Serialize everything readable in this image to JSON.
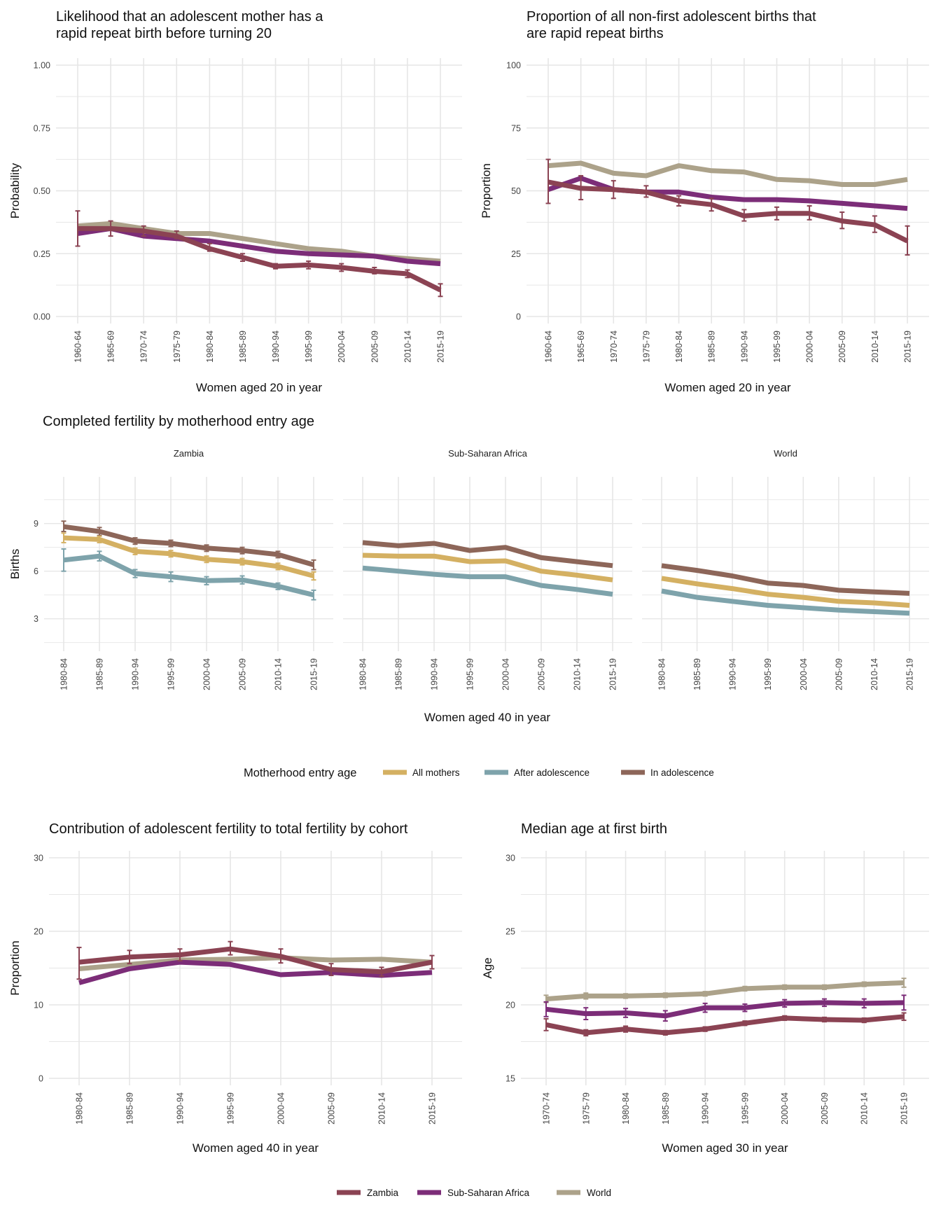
{
  "colors": {
    "Zambia": "#8b4353",
    "Sub-Saharan Africa": "#7c2d78",
    "World": "#aca28a",
    "All mothers": "#d4b062",
    "After adolescence": "#7ea3ab",
    "In adolescence": "#8d6659"
  },
  "legend_region": {
    "items": [
      "Zambia",
      "Sub-Saharan Africa",
      "World"
    ]
  },
  "legend_entry": {
    "title": "Motherhood entry age",
    "items": [
      "All mothers",
      "After adolescence",
      "In adolescence"
    ]
  },
  "chart_data": [
    {
      "id": "rapid-repeat-likelihood",
      "type": "line",
      "title": "Likelihood that an adolescent mother has a rapid repeat birth before turning 20",
      "xlabel": "Women aged 20 in year",
      "ylabel": "Probability",
      "ylim": [
        0,
        1
      ],
      "yticks": [
        0,
        0.25,
        0.5,
        0.75,
        1
      ],
      "ytick_labels": [
        "0.00",
        "0.25",
        "0.50",
        "0.75",
        "1.00"
      ],
      "categories": [
        "1960-64",
        "1965-69",
        "1970-74",
        "1975-79",
        "1980-84",
        "1985-89",
        "1990-94",
        "1995-99",
        "2000-04",
        "2005-09",
        "2010-14",
        "2015-19"
      ],
      "grid": true,
      "series": [
        {
          "name": "World",
          "values": [
            0.36,
            0.37,
            0.35,
            0.33,
            0.33,
            0.31,
            0.29,
            0.27,
            0.26,
            0.24,
            0.23,
            0.22
          ]
        },
        {
          "name": "Sub-Saharan Africa",
          "values": [
            0.33,
            0.35,
            0.32,
            0.31,
            0.3,
            0.28,
            0.26,
            0.25,
            0.245,
            0.24,
            0.22,
            0.21
          ]
        },
        {
          "name": "Zambia",
          "values": [
            0.35,
            0.35,
            0.34,
            0.32,
            0.27,
            0.235,
            0.2,
            0.205,
            0.195,
            0.18,
            0.17,
            0.105
          ],
          "errors": [
            [
              0.28,
              0.42
            ],
            [
              0.32,
              0.38
            ],
            [
              0.32,
              0.36
            ],
            [
              0.31,
              0.34
            ],
            [
              0.26,
              0.29
            ],
            [
              0.22,
              0.25
            ],
            [
              0.19,
              0.21
            ],
            [
              0.19,
              0.22
            ],
            [
              0.18,
              0.21
            ],
            [
              0.17,
              0.195
            ],
            [
              0.155,
              0.185
            ],
            [
              0.08,
              0.13
            ]
          ]
        }
      ]
    },
    {
      "id": "rapid-repeat-proportion",
      "type": "line",
      "title": "Proportion of all non-first adolescent births that are rapid repeat births",
      "xlabel": "Women aged 20 in year",
      "ylabel": "Proportion",
      "ylim": [
        0,
        100
      ],
      "yticks": [
        0,
        25,
        50,
        75,
        100
      ],
      "ytick_labels": [
        "0",
        "25",
        "50",
        "75",
        "100"
      ],
      "categories": [
        "1960-64",
        "1965-69",
        "1970-74",
        "1975-79",
        "1980-84",
        "1985-89",
        "1990-94",
        "1995-99",
        "2000-04",
        "2005-09",
        "2010-14",
        "2015-19"
      ],
      "grid": true,
      "series": [
        {
          "name": "World",
          "values": [
            60,
            61,
            57,
            56,
            60,
            58,
            57.5,
            54.5,
            54,
            52.5,
            52.5,
            54.5
          ]
        },
        {
          "name": "Sub-Saharan Africa",
          "values": [
            50.5,
            55,
            50.5,
            49.5,
            49.5,
            47.5,
            46.5,
            46.5,
            46,
            45,
            44,
            43
          ]
        },
        {
          "name": "Zambia",
          "values": [
            53.5,
            51,
            50.5,
            49.5,
            46,
            44.5,
            40,
            41,
            41,
            38,
            36.5,
            30
          ],
          "errors": [
            [
              45,
              62.5
            ],
            [
              46.5,
              56
            ],
            [
              47,
              54
            ],
            [
              47.5,
              52
            ],
            [
              44,
              48
            ],
            [
              42,
              47
            ],
            [
              38,
              42.5
            ],
            [
              38.5,
              43.5
            ],
            [
              38.5,
              44
            ],
            [
              35,
              41.5
            ],
            [
              33.5,
              40
            ],
            [
              24.5,
              36
            ]
          ]
        }
      ]
    },
    {
      "id": "completed-fertility",
      "type": "line",
      "title": "Completed fertility by motherhood entry age",
      "xlabel": "Women aged 40 in year",
      "ylabel": "Births",
      "ylim": [
        1.4,
        11.5
      ],
      "yticks": [
        3,
        6,
        9
      ],
      "ytick_labels": [
        "3",
        "6",
        "9"
      ],
      "categories": [
        "1980-84",
        "1985-89",
        "1990-94",
        "1995-99",
        "2000-04",
        "2005-09",
        "2010-14",
        "2015-19"
      ],
      "grid": true,
      "facets": [
        {
          "name": "Zambia",
          "series": [
            {
              "name": "In adolescence",
              "values": [
                8.8,
                8.5,
                7.9,
                7.75,
                7.45,
                7.3,
                7.05,
                6.4
              ],
              "errors": [
                [
                  8.5,
                  9.15
                ],
                [
                  8.25,
                  8.75
                ],
                [
                  7.7,
                  8.1
                ],
                [
                  7.55,
                  7.95
                ],
                [
                  7.25,
                  7.65
                ],
                [
                  7.1,
                  7.5
                ],
                [
                  6.85,
                  7.25
                ],
                [
                  6.1,
                  6.7
                ]
              ]
            },
            {
              "name": "All mothers",
              "values": [
                8.1,
                8.0,
                7.25,
                7.1,
                6.75,
                6.6,
                6.3,
                5.7
              ],
              "errors": [
                [
                  7.8,
                  8.4
                ],
                [
                  7.8,
                  8.2
                ],
                [
                  7.05,
                  7.45
                ],
                [
                  6.9,
                  7.3
                ],
                [
                  6.55,
                  6.95
                ],
                [
                  6.4,
                  6.8
                ],
                [
                  6.1,
                  6.5
                ],
                [
                  5.45,
                  5.95
                ]
              ]
            },
            {
              "name": "After adolescence",
              "values": [
                6.7,
                6.95,
                5.85,
                5.65,
                5.4,
                5.45,
                5.05,
                4.5
              ],
              "errors": [
                [
                  6.0,
                  7.4
                ],
                [
                  6.65,
                  7.25
                ],
                [
                  5.6,
                  6.1
                ],
                [
                  5.35,
                  5.95
                ],
                [
                  5.15,
                  5.65
                ],
                [
                  5.2,
                  5.7
                ],
                [
                  4.85,
                  5.25
                ],
                [
                  4.2,
                  4.8
                ]
              ]
            }
          ]
        },
        {
          "name": "Sub-Saharan Africa",
          "series": [
            {
              "name": "In adolescence",
              "values": [
                7.8,
                7.6,
                7.75,
                7.3,
                7.5,
                6.85,
                6.6,
                6.35
              ]
            },
            {
              "name": "All mothers",
              "values": [
                7.0,
                6.95,
                6.95,
                6.6,
                6.65,
                6.0,
                5.75,
                5.45
              ]
            },
            {
              "name": "After adolescence",
              "values": [
                6.2,
                6.0,
                5.8,
                5.65,
                5.65,
                5.1,
                4.85,
                4.55
              ]
            }
          ]
        },
        {
          "name": "World",
          "series": [
            {
              "name": "In adolescence",
              "values": [
                6.35,
                6.05,
                5.7,
                5.25,
                5.1,
                4.8,
                4.7,
                4.6
              ]
            },
            {
              "name": "All mothers",
              "values": [
                5.55,
                5.2,
                4.9,
                4.55,
                4.35,
                4.1,
                4.0,
                3.85
              ]
            },
            {
              "name": "After adolescence",
              "values": [
                4.75,
                4.35,
                4.1,
                3.85,
                3.7,
                3.55,
                3.45,
                3.35
              ]
            }
          ]
        }
      ]
    },
    {
      "id": "adolescent-contribution",
      "type": "line",
      "title": "Contribution of adolescent fertility to total fertility by cohort",
      "xlabel": "Women aged 40 in year",
      "ylabel": "Proportion",
      "ylim": [
        0,
        30
      ],
      "yticks": [
        0,
        10,
        20,
        30
      ],
      "ytick_labels": [
        "0",
        "10",
        "20",
        "30"
      ],
      "categories": [
        "1980-84",
        "1985-89",
        "1990-94",
        "1995-99",
        "2000-04",
        "2005-09",
        "2010-14",
        "2015-19"
      ],
      "grid": true,
      "series": [
        {
          "name": "World",
          "values": [
            14.9,
            15.5,
            16.1,
            16.2,
            16.4,
            16.1,
            16.2,
            15.8
          ]
        },
        {
          "name": "Sub-Saharan Africa",
          "values": [
            13.0,
            14.9,
            15.8,
            15.5,
            14.1,
            14.4,
            14.0,
            14.4
          ]
        },
        {
          "name": "Zambia",
          "values": [
            15.8,
            16.5,
            16.8,
            17.6,
            16.6,
            14.8,
            14.5,
            15.8
          ],
          "errors": [
            [
              13.5,
              17.8
            ],
            [
              15.6,
              17.4
            ],
            [
              16.0,
              17.6
            ],
            [
              16.8,
              18.6
            ],
            [
              15.7,
              17.6
            ],
            [
              14.0,
              15.6
            ],
            [
              13.9,
              15.1
            ],
            [
              14.9,
              16.7
            ]
          ]
        }
      ]
    },
    {
      "id": "median-age-first-birth",
      "type": "line",
      "title": "Median age at first birth",
      "xlabel": "Women aged 30 in year",
      "ylabel": "Age",
      "ylim": [
        15,
        30
      ],
      "yticks": [
        15,
        20,
        25,
        30
      ],
      "ytick_labels": [
        "15",
        "20",
        "25",
        "30"
      ],
      "categories": [
        "1970-74",
        "1975-79",
        "1980-84",
        "1985-89",
        "1990-94",
        "1995-99",
        "2000-04",
        "2005-09",
        "2010-14",
        "2015-19"
      ],
      "grid": true,
      "series": [
        {
          "name": "World",
          "values": [
            20.4,
            20.6,
            20.6,
            20.65,
            20.75,
            21.1,
            21.2,
            21.2,
            21.4,
            21.5
          ],
          "errors": [
            [
              20.15,
              20.65
            ],
            [
              20.4,
              20.8
            ],
            [
              20.45,
              20.75
            ],
            [
              20.5,
              20.8
            ],
            [
              20.6,
              20.9
            ],
            [
              20.95,
              21.25
            ],
            [
              21.05,
              21.35
            ],
            [
              21.05,
              21.35
            ],
            [
              21.25,
              21.55
            ],
            [
              21.2,
              21.8
            ]
          ]
        },
        {
          "name": "Sub-Saharan Africa",
          "values": [
            19.7,
            19.4,
            19.45,
            19.25,
            19.8,
            19.8,
            20.1,
            20.15,
            20.1,
            20.15
          ],
          "errors": [
            [
              19.2,
              20.2
            ],
            [
              19.0,
              19.8
            ],
            [
              19.15,
              19.75
            ],
            [
              18.9,
              19.6
            ],
            [
              19.5,
              20.1
            ],
            [
              19.55,
              20.05
            ],
            [
              19.85,
              20.35
            ],
            [
              19.9,
              20.4
            ],
            [
              19.8,
              20.4
            ],
            [
              19.65,
              20.65
            ]
          ]
        },
        {
          "name": "Zambia",
          "values": [
            18.65,
            18.1,
            18.35,
            18.1,
            18.35,
            18.75,
            19.1,
            19.0,
            18.95,
            19.2
          ],
          "errors": [
            [
              18.25,
              19.05
            ],
            [
              17.9,
              18.3
            ],
            [
              18.15,
              18.55
            ],
            [
              17.95,
              18.25
            ],
            [
              18.2,
              18.5
            ],
            [
              18.6,
              18.9
            ],
            [
              18.95,
              19.25
            ],
            [
              18.85,
              19.15
            ],
            [
              18.8,
              19.1
            ],
            [
              18.95,
              19.45
            ]
          ]
        }
      ]
    }
  ]
}
